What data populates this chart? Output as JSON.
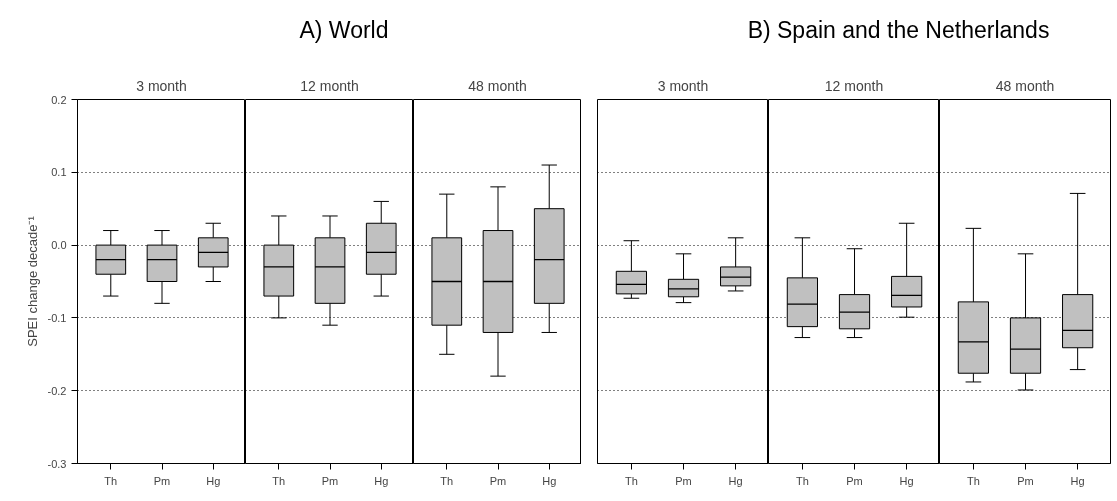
{
  "chart_data": [
    {
      "type": "box",
      "subtitle": "3 month",
      "ylabel": "SPEI change decade⁻¹",
      "categories": [
        "Th",
        "Pm",
        "Hg"
      ],
      "ylim": [
        -0.3,
        0.2
      ],
      "yticks": [
        {
          "value": -0.3,
          "label": "-0.3"
        },
        {
          "value": -0.2,
          "label": "-0.2"
        },
        {
          "value": -0.1,
          "label": "-0.1"
        },
        {
          "value": 0,
          "label": "0.0"
        },
        {
          "value": 0.1,
          "label": "0.1"
        },
        {
          "value": 0.2,
          "label": "0.2"
        }
      ],
      "grid": "y",
      "boxes": [
        {
          "low": -0.07,
          "q1": -0.04,
          "median": -0.02,
          "q3": 0,
          "high": 0.02
        },
        {
          "low": -0.08,
          "q1": -0.05,
          "median": -0.02,
          "q3": 0,
          "high": 0.02
        },
        {
          "low": -0.05,
          "q1": -0.03,
          "median": -0.01,
          "q3": 0.01,
          "high": 0.03
        }
      ]
    },
    {
      "type": "box",
      "title": "A) World",
      "subtitle": "12 month",
      "categories": [
        "Th",
        "Pm",
        "Hg"
      ],
      "ylim": [
        -0.3,
        0.2
      ],
      "yticks": [
        -0.3,
        -0.2,
        -0.1,
        0,
        0.1,
        0.2
      ],
      "grid": "y",
      "tick_labels": "x",
      "boxes": [
        {
          "low": -0.1,
          "q1": -0.07,
          "median": -0.03,
          "q3": 0,
          "high": 0.04
        },
        {
          "low": -0.11,
          "q1": -0.08,
          "median": -0.03,
          "q3": 0.01,
          "high": 0.04
        },
        {
          "low": -0.07,
          "q1": -0.04,
          "median": -0.01,
          "q3": 0.03,
          "high": 0.06
        }
      ]
    },
    {
      "type": "box",
      "subtitle": "48 month",
      "categories": [
        "Th",
        "Pm",
        "Hg"
      ],
      "ylim": [
        -0.3,
        0.2
      ],
      "yticks": [
        -0.3,
        -0.2,
        -0.1,
        0,
        0.1,
        0.2
      ],
      "grid": "y",
      "tick_labels": "x",
      "boxes": [
        {
          "low": -0.15,
          "q1": -0.11,
          "median": -0.05,
          "q3": 0.01,
          "high": 0.07
        },
        {
          "low": -0.18,
          "q1": -0.12,
          "median": -0.05,
          "q3": 0.02,
          "high": 0.08
        },
        {
          "low": -0.12,
          "q1": -0.08,
          "median": -0.02,
          "q3": 0.05,
          "high": 0.11
        }
      ]
    },
    {
      "type": "box",
      "subtitle": "3 month",
      "categories": [
        "Th",
        "Pm",
        "Hg"
      ],
      "ylim": [
        -0.3,
        0.2
      ],
      "yticks": [
        -0.3,
        -0.2,
        -0.1,
        0,
        0.1,
        0.2
      ],
      "grid": "y",
      "tick_labels": "x",
      "boxes": [
        {
          "low": -0.073,
          "q1": -0.067,
          "median": -0.054,
          "q3": -0.036,
          "high": 0.006
        },
        {
          "low": -0.079,
          "q1": -0.071,
          "median": -0.06,
          "q3": -0.047,
          "high": -0.012
        },
        {
          "low": -0.063,
          "q1": -0.056,
          "median": -0.044,
          "q3": -0.03,
          "high": 0.01
        }
      ]
    },
    {
      "type": "box",
      "title": "B) Spain and the Netherlands",
      "subtitle": "12 month",
      "categories": [
        "Th",
        "Pm",
        "Hg"
      ],
      "ylim": [
        -0.3,
        0.2
      ],
      "yticks": [
        -0.3,
        -0.2,
        -0.1,
        0,
        0.1,
        0.2
      ],
      "grid": "y",
      "tick_labels": "x",
      "boxes": [
        {
          "low": -0.127,
          "q1": -0.112,
          "median": -0.081,
          "q3": -0.045,
          "high": 0.01
        },
        {
          "low": -0.127,
          "q1": -0.115,
          "median": -0.092,
          "q3": -0.068,
          "high": -0.005
        },
        {
          "low": -0.099,
          "q1": -0.085,
          "median": -0.069,
          "q3": -0.043,
          "high": 0.03
        }
      ]
    },
    {
      "type": "box",
      "subtitle": "48 month",
      "categories": [
        "Th",
        "Pm",
        "Hg"
      ],
      "ylim": [
        -0.3,
        0.2
      ],
      "yticks": [
        -0.3,
        -0.2,
        -0.1,
        0,
        0.1,
        0.2
      ],
      "grid": "y",
      "tick_labels": "x",
      "boxes": [
        {
          "low": -0.188,
          "q1": -0.176,
          "median": -0.133,
          "q3": -0.078,
          "high": 0.023
        },
        {
          "low": -0.199,
          "q1": -0.176,
          "median": -0.143,
          "q3": -0.1,
          "high": -0.012
        },
        {
          "low": -0.171,
          "q1": -0.141,
          "median": -0.117,
          "q3": -0.068,
          "high": 0.071
        }
      ]
    }
  ]
}
